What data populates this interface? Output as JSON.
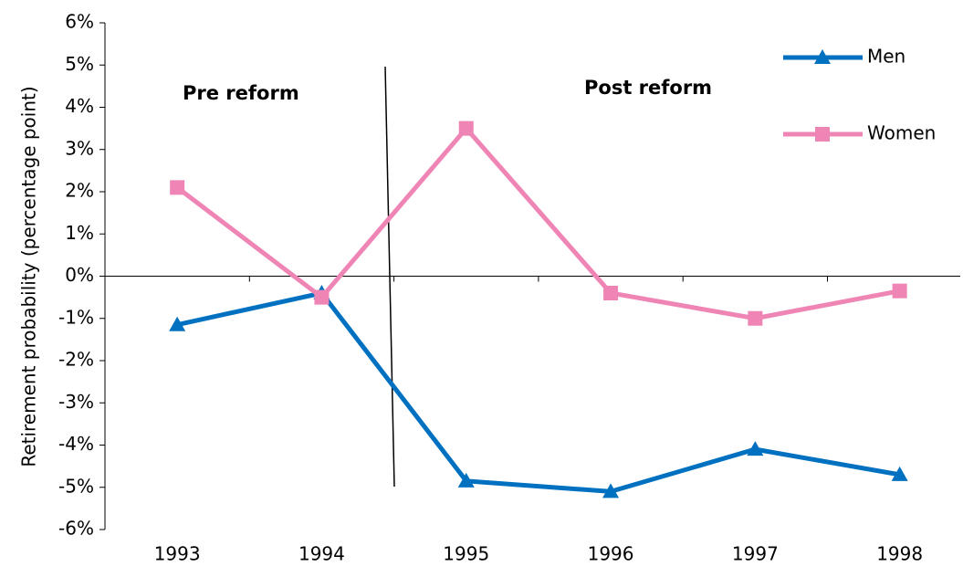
{
  "chart_data": {
    "type": "line",
    "y_axis_label": "Retirement probability (percentage point)",
    "annotations": [
      "Pre reform",
      "Post reform"
    ],
    "categories": [
      "1993",
      "1994",
      "1995",
      "1996",
      "1997",
      "1998"
    ],
    "series": [
      {
        "name": "Men",
        "color": "#0070c0",
        "marker": "triangle",
        "values": [
          -1.15,
          -0.4,
          -4.85,
          -5.1,
          -4.1,
          -4.7
        ]
      },
      {
        "name": "Women",
        "color": "#ef85b5",
        "marker": "square",
        "values": [
          2.1,
          -0.5,
          3.5,
          -0.4,
          -1.0,
          -0.35
        ]
      }
    ],
    "ylim": [
      -6,
      6
    ],
    "yticks": [
      {
        "value": -6,
        "label": "-6%"
      },
      {
        "value": -5,
        "label": "-5%"
      },
      {
        "value": -4,
        "label": "-4%"
      },
      {
        "value": -3,
        "label": "-3%"
      },
      {
        "value": -2,
        "label": "-2%"
      },
      {
        "value": -1,
        "label": "-1%"
      },
      {
        "value": 0,
        "label": "0%"
      },
      {
        "value": 1,
        "label": "1%"
      },
      {
        "value": 2,
        "label": "2%"
      },
      {
        "value": 3,
        "label": "3%"
      },
      {
        "value": 4,
        "label": "4%"
      },
      {
        "value": 5,
        "label": "5%"
      },
      {
        "value": 6,
        "label": "6%"
      }
    ],
    "grid": false,
    "legend": "top-right"
  }
}
